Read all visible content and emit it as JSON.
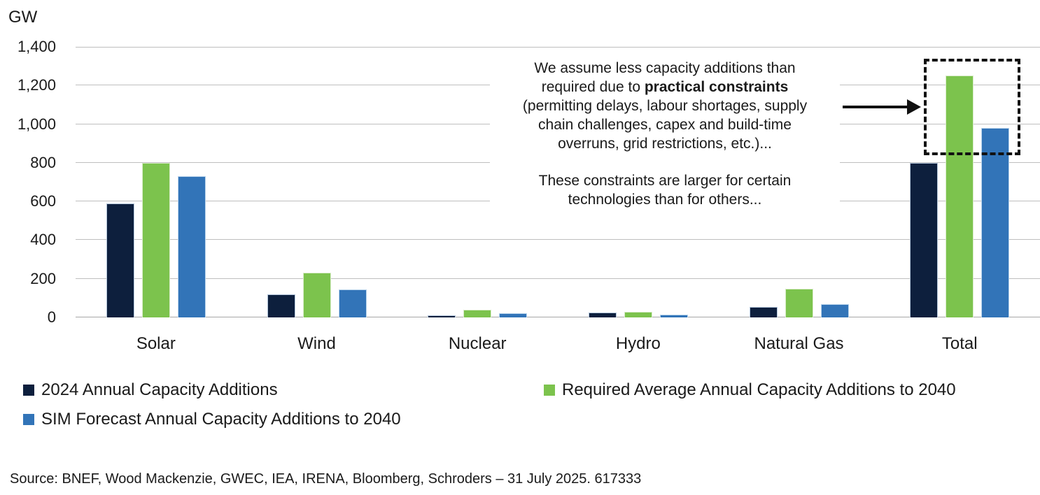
{
  "chart_data": {
    "type": "bar",
    "title": "",
    "ylabel": "GW",
    "xlabel": "",
    "categories": [
      "Solar",
      "Wind",
      "Nuclear",
      "Hydro",
      "Natural Gas",
      "Total"
    ],
    "series": [
      {
        "name": "2024 Annual Capacity Additions",
        "color": "#0d1f3d",
        "values": [
          590,
          120,
          10,
          25,
          55,
          800
        ]
      },
      {
        "name": "Required Average Annual Capacity Additions to 2040",
        "color": "#7cc34d",
        "values": [
          800,
          230,
          40,
          30,
          150,
          1250
        ]
      },
      {
        "name": "SIM Forecast Annual Capacity Additions to 2040",
        "color": "#3274b8",
        "values": [
          730,
          145,
          20,
          15,
          70,
          980
        ]
      }
    ],
    "ylim": [
      0,
      1400
    ],
    "ytick_step": 200,
    "yticks": [
      "0",
      "200",
      "400",
      "600",
      "800",
      "1,000",
      "1,200",
      "1,400"
    ],
    "grid": true,
    "gridline_color": "#bfbfbf",
    "legend_position": "bottom",
    "highlighted_category": "Total"
  },
  "annotation": {
    "para1_lines": [
      {
        "text": "We assume less capacity additions than"
      },
      {
        "prefix": "required due to ",
        "bold": "practical constraints"
      },
      {
        "text": "(permitting delays, labour shortages, supply"
      },
      {
        "text": "chain challenges, capex and build-time"
      },
      {
        "text": "overruns, grid restrictions, etc.)..."
      }
    ],
    "para2_lines": [
      "These constraints are larger for certain",
      "technologies than for others..."
    ]
  },
  "source_line": "Source: BNEF, Wood Mackenzie, GWEC, IEA, IRENA, Bloomberg, Schroders – 31 July 2025. 617333"
}
